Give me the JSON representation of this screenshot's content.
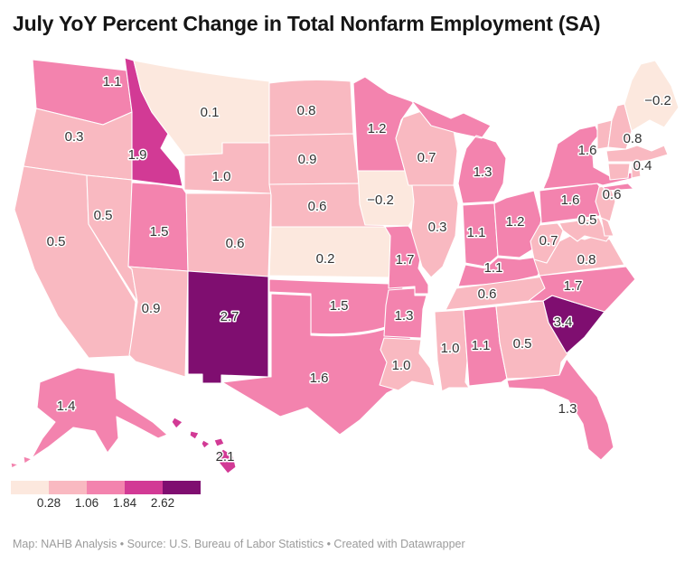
{
  "title": "July YoY Percent Change in Total Nonfarm Employment (SA)",
  "footer": "Map: NAHB Analysis • Source: U.S. Bureau of Labor Statistics • Created with Datawrapper",
  "chart_data": {
    "type": "choropleth_map",
    "region": "United States (states, Albers-style layout, AK and HI insets)",
    "title": "July YoY Percent Change in Total Nonfarm Employment (SA)",
    "unit": "percent",
    "legend": {
      "tick_labels": [
        "0.28",
        "1.06",
        "1.84",
        "2.62"
      ],
      "bin_colors": [
        "#fce8de",
        "#f9b9c1",
        "#f383ae",
        "#d23a95",
        "#7f0e70"
      ],
      "bin_breaks": [
        0.28,
        1.06,
        1.84,
        2.62
      ],
      "position": "bottom-left"
    },
    "series": [
      {
        "abbr": "WA",
        "state": "Washington",
        "value": 1.1,
        "label": "1.1"
      },
      {
        "abbr": "OR",
        "state": "Oregon",
        "value": 0.3,
        "label": "0.3"
      },
      {
        "abbr": "CA",
        "state": "California",
        "value": 0.5,
        "label": "0.5"
      },
      {
        "abbr": "NV",
        "state": "Nevada",
        "value": 0.5,
        "label": "0.5"
      },
      {
        "abbr": "ID",
        "state": "Idaho",
        "value": 1.9,
        "label": "1.9"
      },
      {
        "abbr": "MT",
        "state": "Montana",
        "value": 0.1,
        "label": "0.1"
      },
      {
        "abbr": "WY",
        "state": "Wyoming",
        "value": 1.0,
        "label": "1.0"
      },
      {
        "abbr": "UT",
        "state": "Utah",
        "value": 1.5,
        "label": "1.5"
      },
      {
        "abbr": "CO",
        "state": "Colorado",
        "value": 0.6,
        "label": "0.6"
      },
      {
        "abbr": "AZ",
        "state": "Arizona",
        "value": 0.9,
        "label": "0.9"
      },
      {
        "abbr": "NM",
        "state": "New Mexico",
        "value": 2.7,
        "label": "2.7"
      },
      {
        "abbr": "ND",
        "state": "North Dakota",
        "value": 0.8,
        "label": "0.8"
      },
      {
        "abbr": "SD",
        "state": "South Dakota",
        "value": 0.9,
        "label": "0.9"
      },
      {
        "abbr": "NE",
        "state": "Nebraska",
        "value": 0.6,
        "label": "0.6"
      },
      {
        "abbr": "KS",
        "state": "Kansas",
        "value": 0.2,
        "label": "0.2"
      },
      {
        "abbr": "OK",
        "state": "Oklahoma",
        "value": 1.5,
        "label": "1.5"
      },
      {
        "abbr": "TX",
        "state": "Texas",
        "value": 1.6,
        "label": "1.6"
      },
      {
        "abbr": "MN",
        "state": "Minnesota",
        "value": 1.2,
        "label": "1.2"
      },
      {
        "abbr": "IA",
        "state": "Iowa",
        "value": -0.2,
        "label": "−0.2"
      },
      {
        "abbr": "MO",
        "state": "Missouri",
        "value": 1.7,
        "label": "1.7"
      },
      {
        "abbr": "AR",
        "state": "Arkansas",
        "value": 1.3,
        "label": "1.3"
      },
      {
        "abbr": "LA",
        "state": "Louisiana",
        "value": 1.0,
        "label": "1.0"
      },
      {
        "abbr": "WI",
        "state": "Wisconsin",
        "value": 0.7,
        "label": "0.7"
      },
      {
        "abbr": "IL",
        "state": "Illinois",
        "value": 0.3,
        "label": "0.3"
      },
      {
        "abbr": "MI",
        "state": "Michigan",
        "value": 1.3,
        "label": "1.3"
      },
      {
        "abbr": "IN",
        "state": "Indiana",
        "value": 1.1,
        "label": "1.1"
      },
      {
        "abbr": "OH",
        "state": "Ohio",
        "value": 1.2,
        "label": "1.2"
      },
      {
        "abbr": "KY",
        "state": "Kentucky",
        "value": 1.1,
        "label": "1.1"
      },
      {
        "abbr": "TN",
        "state": "Tennessee",
        "value": 0.6,
        "label": "0.6"
      },
      {
        "abbr": "MS",
        "state": "Mississippi",
        "value": 1.0,
        "label": "1.0"
      },
      {
        "abbr": "AL",
        "state": "Alabama",
        "value": 1.1,
        "label": "1.1"
      },
      {
        "abbr": "GA",
        "state": "Georgia",
        "value": 0.5,
        "label": "0.5"
      },
      {
        "abbr": "FL",
        "state": "Florida",
        "value": 1.3,
        "label": "1.3"
      },
      {
        "abbr": "SC",
        "state": "South Carolina",
        "value": 3.4,
        "label": "3.4"
      },
      {
        "abbr": "NC",
        "state": "North Carolina",
        "value": 1.7,
        "label": "1.7"
      },
      {
        "abbr": "VA",
        "state": "Virginia",
        "value": 0.8,
        "label": "0.8"
      },
      {
        "abbr": "WV",
        "state": "West Virginia",
        "value": 0.7,
        "label": "0.7"
      },
      {
        "abbr": "MD",
        "state": "Maryland",
        "value": 0.5,
        "label": "0.5"
      },
      {
        "abbr": "DE",
        "state": "Delaware",
        "value": null,
        "label": null
      },
      {
        "abbr": "PA",
        "state": "Pennsylvania",
        "value": 1.6,
        "label": "1.6"
      },
      {
        "abbr": "NJ",
        "state": "New Jersey",
        "value": 0.6,
        "label": "0.6"
      },
      {
        "abbr": "NY",
        "state": "New York",
        "value": 1.6,
        "label": "1.6"
      },
      {
        "abbr": "CT",
        "state": "Connecticut",
        "value": null,
        "label": null
      },
      {
        "abbr": "RI",
        "state": "Rhode Island",
        "value": null,
        "label": null
      },
      {
        "abbr": "MA",
        "state": "Massachusetts",
        "value": 0.4,
        "label": "0.4"
      },
      {
        "abbr": "VT",
        "state": "Vermont",
        "value": null,
        "label": null
      },
      {
        "abbr": "NH",
        "state": "New Hampshire",
        "value": 0.8,
        "label": "0.8"
      },
      {
        "abbr": "ME",
        "state": "Maine",
        "value": -0.2,
        "label": "−0.2"
      },
      {
        "abbr": "AK",
        "state": "Alaska",
        "value": 1.4,
        "label": "1.4"
      },
      {
        "abbr": "HI",
        "state": "Hawaii",
        "value": 2.1,
        "label": "2.1"
      }
    ]
  }
}
